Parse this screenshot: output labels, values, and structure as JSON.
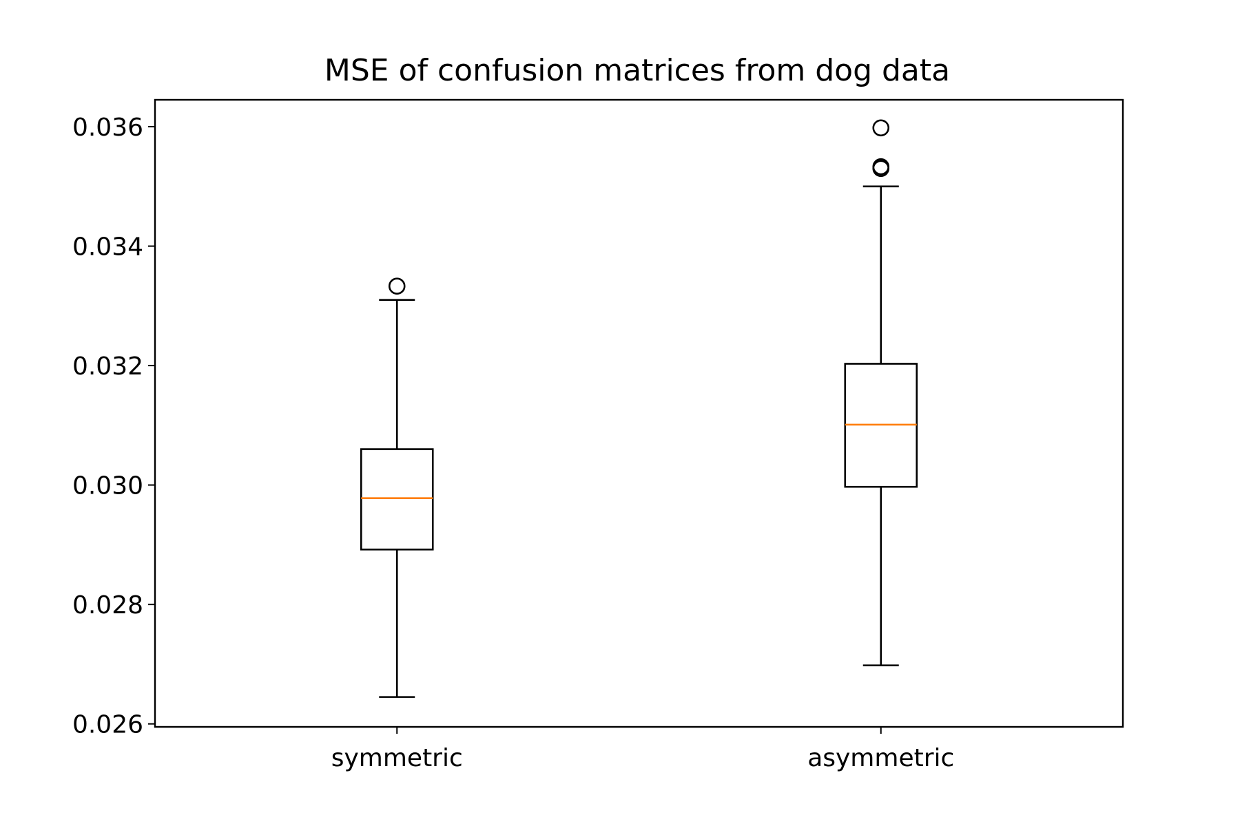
{
  "chart_data": {
    "type": "box",
    "title": "MSE of confusion matrices from dog data",
    "xlabel": "",
    "ylabel": "",
    "categories": [
      "symmetric",
      "asymmetric"
    ],
    "ylim": [
      0.02595,
      0.03645
    ],
    "yticks": [
      0.026,
      0.028,
      0.03,
      0.032,
      0.034,
      0.036
    ],
    "ytick_labels": [
      "0.026",
      "0.028",
      "0.030",
      "0.032",
      "0.034",
      "0.036"
    ],
    "grid": false,
    "legend": "none",
    "boxes": [
      {
        "category": "symmetric",
        "whisker_low": 0.02645,
        "q1": 0.02892,
        "median": 0.02978,
        "q3": 0.0306,
        "whisker_high": 0.0331,
        "outliers": [
          0.03333
        ]
      },
      {
        "category": "asymmetric",
        "whisker_low": 0.02698,
        "q1": 0.02997,
        "median": 0.03101,
        "q3": 0.03203,
        "whisker_high": 0.035,
        "outliers": [
          0.0353,
          0.03533,
          0.03598
        ]
      }
    ],
    "colors": {
      "box": "#000000",
      "median": "#ff7f0e",
      "outlier": "#000000"
    }
  }
}
